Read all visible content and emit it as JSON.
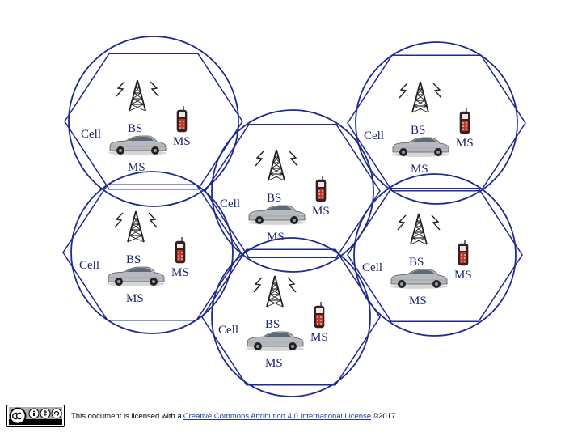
{
  "cells": [
    {
      "id": "top-left",
      "cell_label": "Cell",
      "bs_label": "BS",
      "ms_phone_label": "MS",
      "ms_car_label": "MS"
    },
    {
      "id": "top-right",
      "cell_label": "Cell",
      "bs_label": "BS",
      "ms_phone_label": "MS",
      "ms_car_label": "MS"
    },
    {
      "id": "center",
      "cell_label": "Cell",
      "bs_label": "BS",
      "ms_phone_label": "MS",
      "ms_car_label": "MS"
    },
    {
      "id": "mid-left",
      "cell_label": "Cell",
      "bs_label": "BS",
      "ms_phone_label": "MS",
      "ms_car_label": "MS"
    },
    {
      "id": "mid-right",
      "cell_label": "Cell",
      "bs_label": "BS",
      "ms_phone_label": "MS",
      "ms_car_label": "MS"
    },
    {
      "id": "bottom",
      "cell_label": "Cell",
      "bs_label": "BS",
      "ms_phone_label": "MS",
      "ms_car_label": "MS"
    }
  ],
  "colors": {
    "line": "#1f2a8f",
    "text": "#1a2470"
  },
  "footer": {
    "license_badge": "cc-by-nc-sa-badge",
    "prefix": "This document is licensed with a",
    "link_text": "Creative Commons Attribution 4.0 International License",
    "suffix": "©2017"
  }
}
